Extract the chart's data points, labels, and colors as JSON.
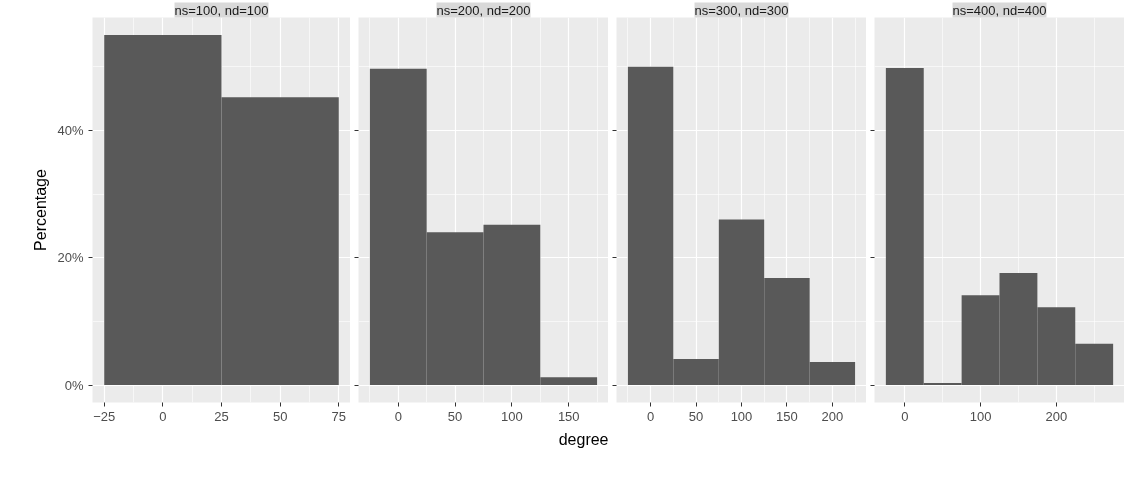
{
  "chart_data": [
    {
      "type": "histogram",
      "title": "ns=100, nd=100",
      "ylabel": "Percentage",
      "color": "#595959",
      "grid": true,
      "bins": [
        -25,
        25,
        75
      ],
      "values": [
        55,
        45.2
      ],
      "xlim": [
        -30,
        80
      ],
      "xticks": [
        -25,
        0,
        25,
        50,
        75
      ],
      "ylim": [
        -2.75,
        57.75
      ],
      "yticks": [
        {
          "value": 0,
          "label": "0%"
        },
        {
          "value": 20,
          "label": "20%"
        },
        {
          "value": 40,
          "label": "40%"
        }
      ]
    },
    {
      "type": "histogram",
      "title": "ns=200, nd=200",
      "xlabel": "degree",
      "color": "#595959",
      "grid": true,
      "tick_labels": "x",
      "bins": [
        -25,
        25,
        75,
        125,
        175
      ],
      "values": [
        49.7,
        24.0,
        25.2,
        1.2
      ],
      "xlim": [
        -35,
        185
      ],
      "xticks": [
        0,
        50,
        100,
        150
      ],
      "ylim": [
        -2.75,
        57.75
      ]
    },
    {
      "type": "histogram",
      "title": "ns=300, nd=300",
      "color": "#595959",
      "grid": true,
      "tick_labels": "x",
      "bins": [
        -25,
        25,
        75,
        125,
        175,
        225
      ],
      "values": [
        50,
        4.1,
        26,
        16.8,
        3.6
      ],
      "xlim": [
        -37.5,
        237.5
      ],
      "xticks": [
        0,
        50,
        100,
        150,
        200
      ],
      "ylim": [
        -2.75,
        57.75
      ]
    },
    {
      "type": "histogram",
      "title": "ns=400, nd=400",
      "color": "#595959",
      "grid": true,
      "tick_labels": "x",
      "bins": [
        -25,
        25,
        75,
        125,
        175,
        225,
        275
      ],
      "values": [
        49.8,
        0.3,
        14.1,
        17.6,
        12.2,
        6.5
      ],
      "xlim": [
        -40,
        290
      ],
      "xticks": [
        0,
        100,
        200
      ],
      "ylim": [
        -2.75,
        57.75
      ]
    }
  ]
}
